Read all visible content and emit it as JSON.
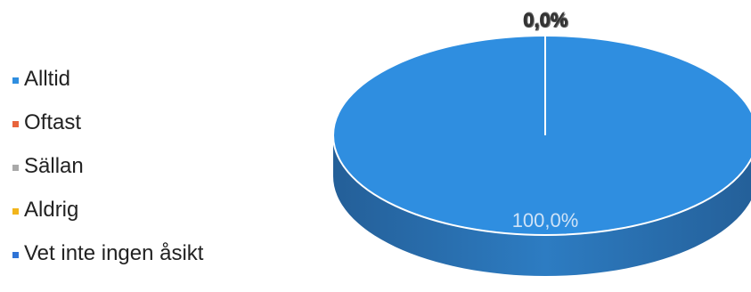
{
  "chart_data": {
    "type": "pie",
    "title": "",
    "legend_position": "left",
    "categories": [
      "Alltid",
      "Oftast",
      "Sällan",
      "Aldrig",
      "Vet inte ingen åsikt"
    ],
    "values": [
      100.0,
      0.0,
      0.0,
      0.0,
      0.0
    ],
    "data_labels": [
      "100,0%",
      "0,0%",
      "0,0%",
      "0,0%",
      "0,0%"
    ],
    "colors": [
      "#2f8ee0",
      "#e8643c",
      "#a9a9a9",
      "#f2b51b",
      "#2f74d6"
    ],
    "style": "3d-pie"
  }
}
